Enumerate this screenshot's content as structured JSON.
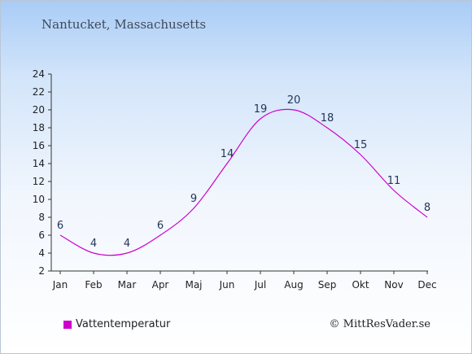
{
  "location": "Nantucket, Massachusetts",
  "copyright": "© MittResVader.se",
  "colors": {
    "line": "#cc00cc",
    "axis": "#333333"
  },
  "chart_data": {
    "type": "line",
    "categories": [
      "Jan",
      "Feb",
      "Mar",
      "Apr",
      "Maj",
      "Jun",
      "Jul",
      "Aug",
      "Sep",
      "Okt",
      "Nov",
      "Dec"
    ],
    "series": [
      {
        "name": "Vattentemperatur",
        "values": [
          6,
          4,
          4,
          6,
          9,
          14,
          19,
          20,
          18,
          15,
          11,
          8
        ],
        "color": "#cc00cc"
      }
    ],
    "data_labels": [
      "6",
      "4",
      "4",
      "6",
      "9",
      "14",
      "19",
      "20",
      "18",
      "15",
      "11",
      "8"
    ],
    "yticks": [
      "2",
      "4",
      "6",
      "8",
      "10",
      "12",
      "14",
      "16",
      "18",
      "20",
      "22",
      "24"
    ],
    "ylim": [
      2,
      24
    ],
    "grid": false,
    "legend": "bottom-left"
  }
}
